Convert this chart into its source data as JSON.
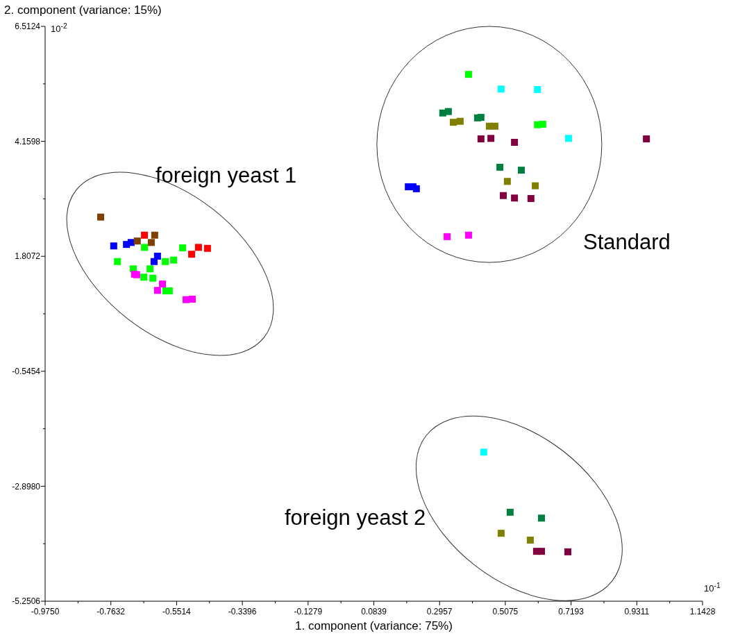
{
  "chart_data": {
    "type": "scatter",
    "xlabel": "1. component (variance: 75%)",
    "ylabel": "2. component (variance: 15%)",
    "annotations": [
      "10$^{-2}$",
      "10$^{-1}$",
      "foreign yeast 1",
      "Standard",
      "foreign yeast 2"
    ],
    "xlim": [
      -0.975,
      1.1428
    ],
    "ylim": [
      -5.2506,
      6.5124
    ],
    "xticks": [
      {
        "value": -0.975,
        "label": "-0.9750"
      },
      {
        "value": -0.7632,
        "label": "-0.7632"
      },
      {
        "value": -0.5514,
        "label": "-0.5514"
      },
      {
        "value": -0.3396,
        "label": "-0.3396"
      },
      {
        "value": -0.1279,
        "label": "-0.1279"
      },
      {
        "value": 0.0839,
        "label": "0.0839"
      },
      {
        "value": 0.2957,
        "label": "0.2957"
      },
      {
        "value": 0.5075,
        "label": "0.5075"
      },
      {
        "value": 0.7193,
        "label": "0.7193"
      },
      {
        "value": 0.9311,
        "label": "0.9311"
      },
      {
        "value": 1.1428,
        "label": "1.1428"
      }
    ],
    "yticks": [
      {
        "value": -5.2506,
        "label": "-5.2506"
      },
      {
        "value": -2.898,
        "label": "-2.8980"
      },
      {
        "value": -0.5454,
        "label": "-0.5454"
      },
      {
        "value": 1.8072,
        "label": "1.8072"
      },
      {
        "value": 4.1598,
        "label": "4.1598"
      },
      {
        "value": 6.5124,
        "label": "6.5124"
      }
    ],
    "grid": false,
    "marker": "square",
    "series": [
      {
        "color": "#0000ff",
        "x": [
          -0.754,
          -0.713,
          -0.698,
          -0.613,
          -0.624,
          0.195,
          0.21,
          0.221
        ],
        "values": [
          2.02,
          2.05,
          2.09,
          1.81,
          1.7,
          3.23,
          3.23,
          3.19
        ]
      },
      {
        "color": "#ff0000",
        "x": [
          -0.655,
          -0.481,
          -0.452,
          -0.503
        ],
        "values": [
          2.24,
          1.99,
          1.97,
          1.85
        ]
      },
      {
        "color": "#804000",
        "x": [
          -0.796,
          -0.622,
          -0.678,
          -0.633
        ],
        "values": [
          2.61,
          2.24,
          2.12,
          2.09
        ]
      },
      {
        "color": "#00ff00",
        "x": [
          -0.655,
          -0.532,
          -0.588,
          -0.561,
          -0.742,
          -0.691,
          -0.637,
          -0.657,
          -0.628,
          -0.586,
          -0.575,
          0.389,
          0.611,
          0.628
        ],
        "values": [
          1.99,
          1.98,
          1.7,
          1.73,
          1.7,
          1.55,
          1.55,
          1.38,
          1.36,
          1.1,
          1.1,
          5.53,
          4.5,
          4.51
        ]
      },
      {
        "color": "#ff00ff",
        "x": [
          -0.687,
          -0.68,
          -0.597,
          -0.613,
          -0.521,
          -0.501,
          0.32,
          0.389
        ],
        "values": [
          1.44,
          1.43,
          1.24,
          1.11,
          0.92,
          0.93,
          2.21,
          2.24
        ]
      },
      {
        "color": "#00ffff",
        "x": [
          0.494,
          0.611,
          0.711,
          0.438
        ],
        "values": [
          5.23,
          5.22,
          4.22,
          -2.2
        ]
      },
      {
        "color": "#008040",
        "x": [
          0.306,
          0.324,
          0.418,
          0.429,
          0.49,
          0.559,
          0.523,
          0.624
        ],
        "values": [
          4.74,
          4.77,
          4.64,
          4.65,
          3.63,
          3.57,
          -3.43,
          -3.55
        ]
      },
      {
        "color": "#808000",
        "x": [
          0.34,
          0.362,
          0.456,
          0.474,
          0.514,
          0.604,
          0.494,
          0.588
        ],
        "values": [
          4.55,
          4.57,
          4.47,
          4.47,
          3.34,
          3.25,
          -3.86,
          -4.0
        ]
      },
      {
        "color": "#800040",
        "x": [
          0.429,
          0.461,
          0.537,
          0.962,
          0.501,
          0.537,
          0.59,
          0.608,
          0.624,
          0.709
        ],
        "values": [
          4.21,
          4.22,
          4.14,
          4.21,
          3.05,
          3.0,
          2.99,
          -4.23,
          -4.23,
          -4.24
        ]
      }
    ]
  }
}
